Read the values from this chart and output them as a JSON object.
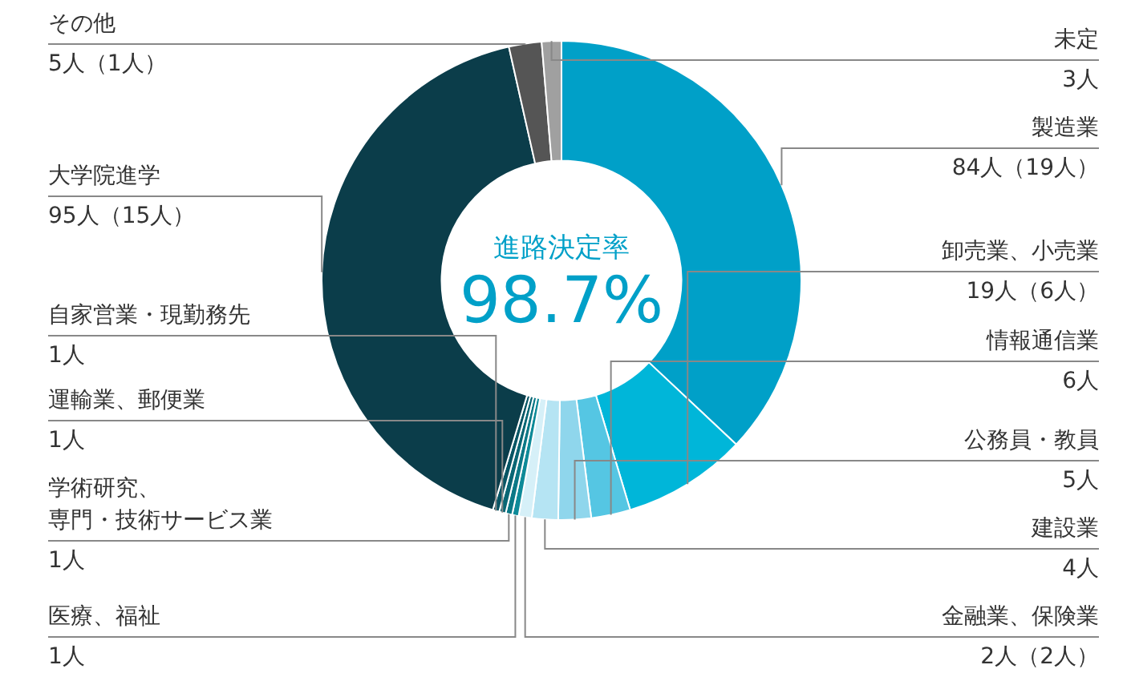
{
  "chart_data": {
    "type": "donut",
    "categories": [
      "製造業",
      "卸売業、小売業",
      "情報通信業",
      "公務員・教員",
      "建設業",
      "金融業、保険業",
      "医療、福祉",
      "学術研究、専門・技術サービス業",
      "運輸業、郵便業",
      "自家営業・現勤務先",
      "大学院進学",
      "その他",
      "未定"
    ],
    "values": [
      84,
      19,
      6,
      5,
      4,
      2,
      1,
      1,
      1,
      1,
      95,
      5,
      3
    ],
    "value_labels": [
      "84人（19人）",
      "19人（6人）",
      "6人",
      "5人",
      "4人",
      "2人（2人）",
      "1人",
      "1人",
      "1人",
      "1人",
      "95人（15人）",
      "5人（1人）",
      "3人"
    ],
    "colors": [
      "#00a0c8",
      "#00b6d9",
      "#55c6e3",
      "#8fd6ec",
      "#b5e4f3",
      "#d6f0f8",
      "#0e8a98",
      "#0b7886",
      "#096674",
      "#075564",
      "#0b3d4a",
      "#555555",
      "#a0a0a0"
    ],
    "annotations": [
      "進路決定率",
      "98.7%"
    ]
  }
}
